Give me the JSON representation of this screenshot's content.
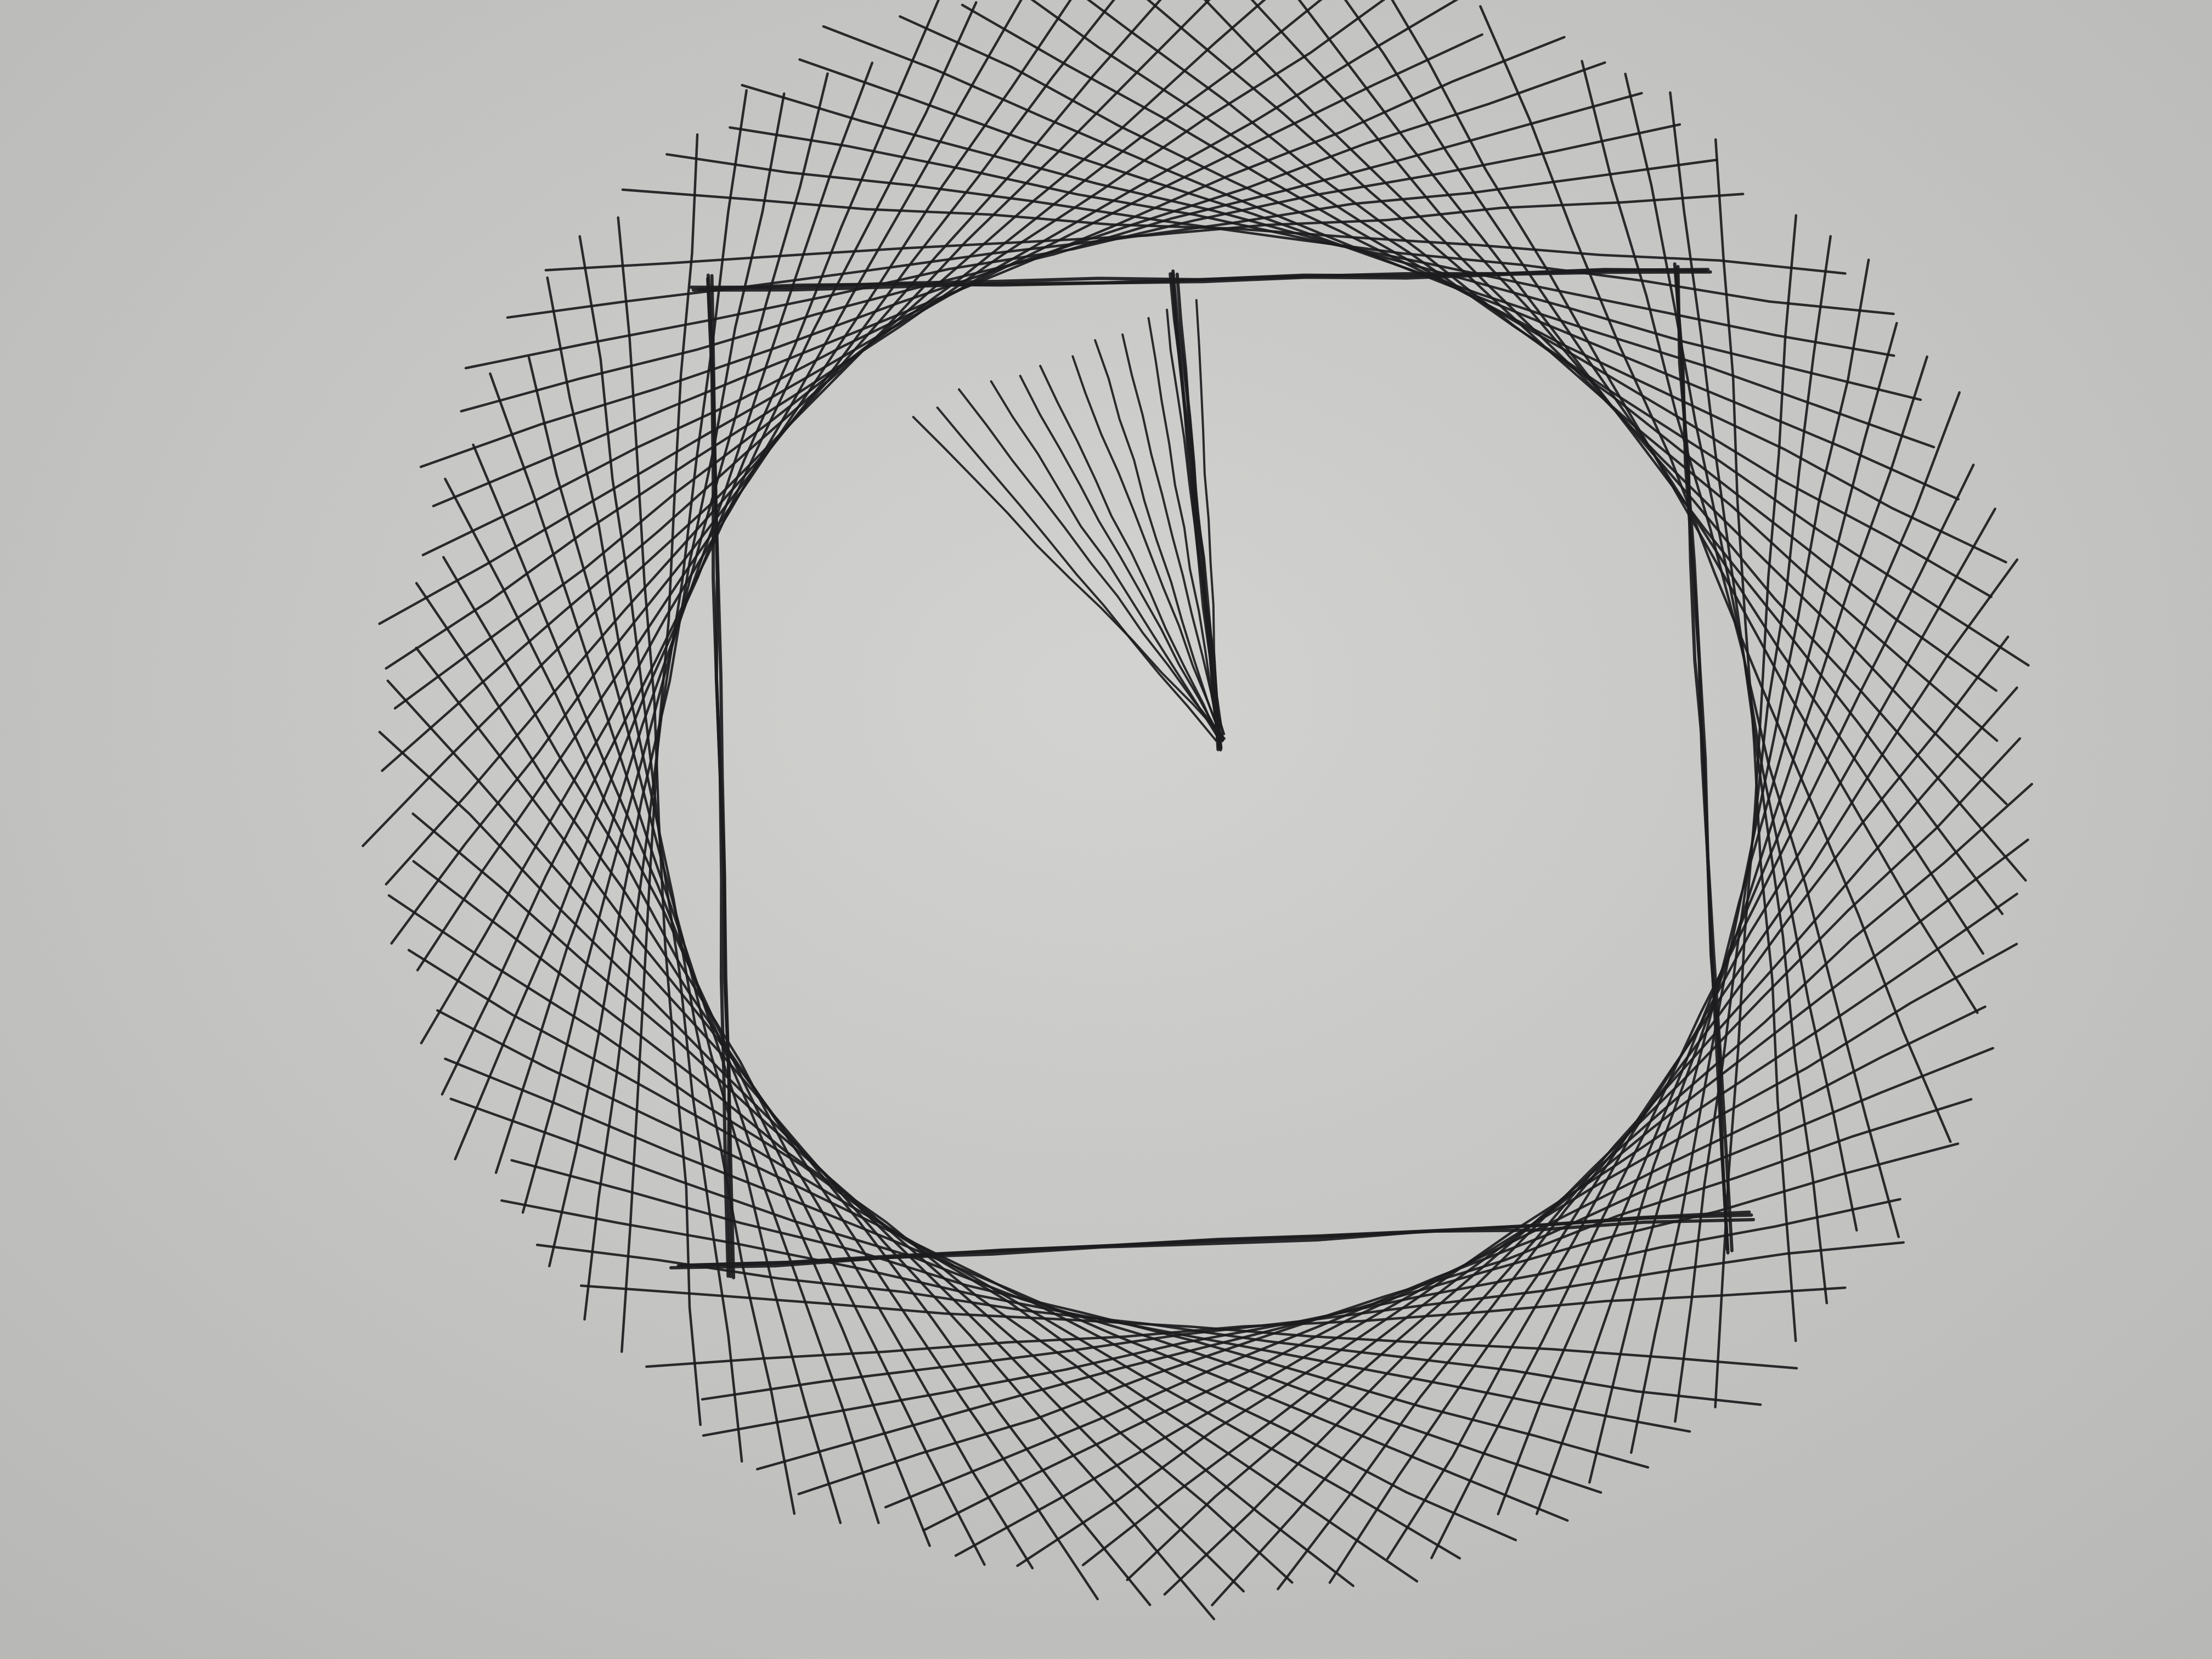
{
  "scene": {
    "subject": "pen-drawing-on-paper",
    "paper_color": "#d4d4d2",
    "paper_shadow_color": "#b9b9b7",
    "ink_color": "#1c1c1e"
  },
  "drawing": {
    "tilted_square_count": 24,
    "rotation_step_degrees": 3.75,
    "inner_fan_stroke_count": 12
  }
}
